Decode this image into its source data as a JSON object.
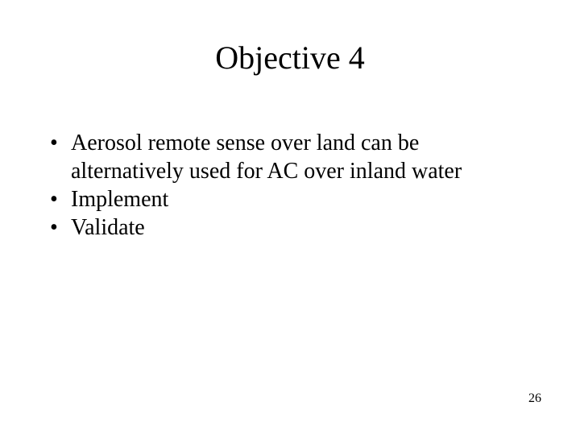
{
  "slide": {
    "title": "Objective 4",
    "bullets": [
      "Aerosol remote sense over land can be alternatively used for AC over inland water",
      "Implement",
      "Validate"
    ],
    "page_number": "26"
  },
  "style": {
    "background_color": "#ffffff",
    "text_color": "#000000",
    "font_family": "Times New Roman",
    "title_fontsize": 40,
    "body_fontsize": 28,
    "page_number_fontsize": 16
  }
}
